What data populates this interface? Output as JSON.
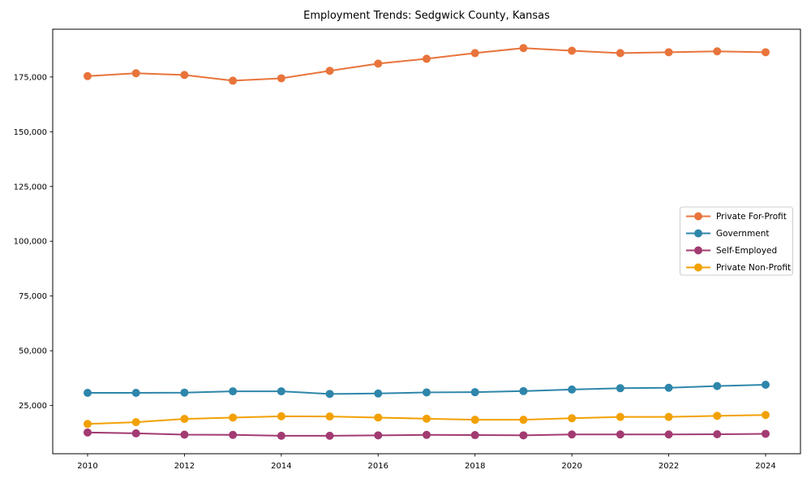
{
  "figure": {
    "background": "#ffffff",
    "frame_color": "#000000",
    "tick_color": "#000000",
    "legend_border_color": "#cccccc",
    "legend_background": "#ffffff"
  },
  "chart_data": {
    "type": "line",
    "title": "Employment Trends: Sedgwick County, Kansas",
    "xlabel": "",
    "ylabel": "",
    "grid": false,
    "legend_position": "center-right",
    "xlim": [
      2009.28,
      2024.72
    ],
    "ylim": [
      3000,
      196800
    ],
    "x": [
      2010,
      2011,
      2012,
      2013,
      2014,
      2015,
      2016,
      2017,
      2018,
      2019,
      2020,
      2021,
      2022,
      2023,
      2024
    ],
    "xticks": [
      2010,
      2012,
      2014,
      2016,
      2018,
      2020,
      2022,
      2024
    ],
    "xtick_labels": [
      "2010",
      "2012",
      "2014",
      "2016",
      "2018",
      "2020",
      "2022",
      "2024"
    ],
    "yticks": [
      25000,
      50000,
      75000,
      100000,
      125000,
      150000,
      175000
    ],
    "ytick_labels": [
      "25,000",
      "50,000",
      "75,000",
      "100,000",
      "125,000",
      "150,000",
      "175,000"
    ],
    "series": [
      {
        "name": "Private For-Profit",
        "slug": "private-for-profit",
        "color": "#e8743b",
        "marker": "circle",
        "values": [
          175400,
          176700,
          175900,
          173300,
          174400,
          177800,
          181100,
          183300,
          185900,
          188200,
          187000,
          185900,
          186300,
          186700,
          186300
        ]
      },
      {
        "name": "Government",
        "slug": "government",
        "color": "#2e86ab",
        "marker": "circle",
        "values": [
          30800,
          30800,
          30900,
          31500,
          31500,
          30300,
          30500,
          31000,
          31100,
          31600,
          32300,
          32900,
          33100,
          33900,
          34500
        ]
      },
      {
        "name": "Self-Employed",
        "slug": "self-employed",
        "color": "#a23b72",
        "marker": "circle",
        "values": [
          12700,
          12300,
          11700,
          11600,
          11200,
          11200,
          11400,
          11600,
          11500,
          11400,
          11800,
          11800,
          11800,
          11900,
          12100
        ]
      },
      {
        "name": "Private Non-Profit",
        "slug": "private-non-profit",
        "color": "#f2a104",
        "marker": "circle",
        "values": [
          16600,
          17400,
          18900,
          19500,
          20100,
          20000,
          19500,
          19000,
          18500,
          18500,
          19200,
          19800,
          19800,
          20300,
          20700
        ]
      }
    ]
  }
}
